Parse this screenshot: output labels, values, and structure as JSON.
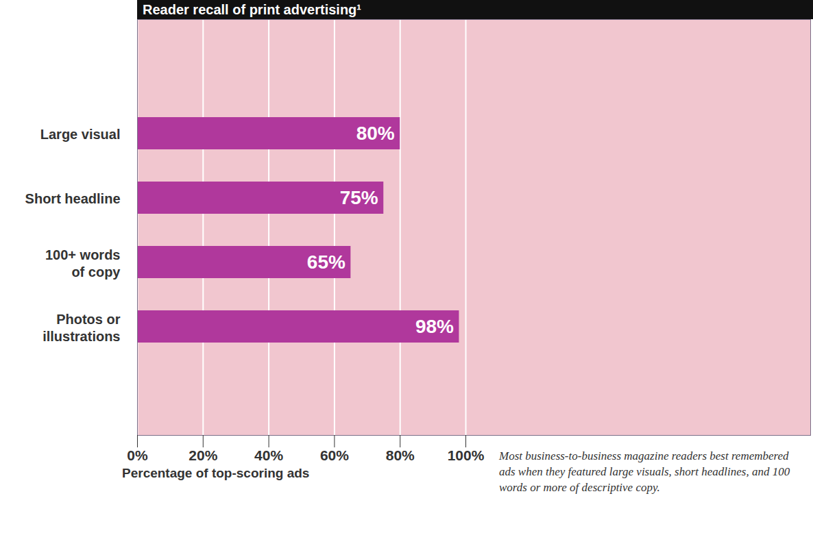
{
  "chart_data": {
    "type": "bar",
    "orientation": "horizontal",
    "title": "Reader recall of print advertising¹",
    "categories": [
      "Large visual",
      "Short headline",
      "100+ words of copy",
      "Photos or illustrations"
    ],
    "values": [
      80,
      75,
      65,
      98
    ],
    "value_labels": [
      "80%",
      "75%",
      "65%",
      "98%"
    ],
    "data_labels": true,
    "color": "#b0389c",
    "xlim": [
      0,
      205
    ],
    "xticks": [
      {
        "value": 0,
        "label": "0%"
      },
      {
        "value": 20,
        "label": "20%"
      },
      {
        "value": 40,
        "label": "40%"
      },
      {
        "value": 60,
        "label": "60%"
      },
      {
        "value": 80,
        "label": "80%"
      },
      {
        "value": 100,
        "label": "100%"
      }
    ],
    "xlabel": "Percentage of top-scoring ads",
    "caption": "Most business-to-business magazine readers best remembered ads when they featured large visuals, short headlines, and 100 words or more of descriptive copy.",
    "grid": true
  }
}
